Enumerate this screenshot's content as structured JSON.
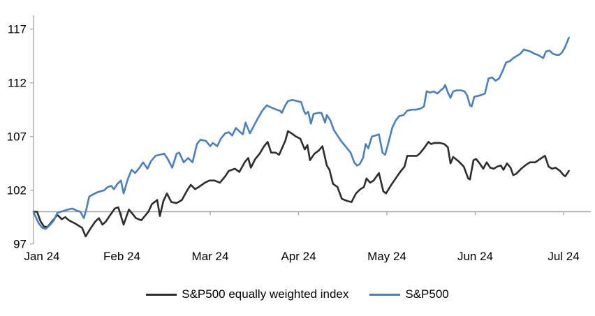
{
  "chart_data": {
    "type": "line",
    "title": "",
    "x_axis": {
      "labels": [
        "Jan 24",
        "Feb 24",
        "Mar 24",
        "Apr 24",
        "May 24",
        "Jun 24",
        "Jul 24"
      ],
      "unit": "month",
      "range": [
        0,
        6.06
      ]
    },
    "y_axis": {
      "ticks": [
        97,
        102,
        107,
        112,
        117
      ],
      "min": 97,
      "max": 117
    },
    "baseline_value": 100,
    "grid": "off",
    "legend_position": "bottom-center",
    "colors": {
      "equal_weight_line": "#2d2d2d",
      "sp500_line": "#4a80bd",
      "axis_gray": "#a6a6a6",
      "text": "#000000"
    },
    "series": [
      {
        "name": "S&P500 equally weighted index",
        "color": "#2d2d2d",
        "points": [
          [
            0.0,
            100.0
          ],
          [
            0.04,
            100.0
          ],
          [
            0.08,
            99.1
          ],
          [
            0.12,
            98.6
          ],
          [
            0.16,
            98.6
          ],
          [
            0.21,
            99.1
          ],
          [
            0.27,
            99.7
          ],
          [
            0.32,
            99.3
          ],
          [
            0.36,
            99.5
          ],
          [
            0.4,
            99.2
          ],
          [
            0.47,
            98.9
          ],
          [
            0.55,
            98.5
          ],
          [
            0.59,
            97.7
          ],
          [
            0.65,
            98.5
          ],
          [
            0.7,
            99.1
          ],
          [
            0.74,
            99.4
          ],
          [
            0.78,
            98.8
          ],
          [
            0.82,
            99.1
          ],
          [
            0.86,
            99.6
          ],
          [
            0.92,
            100.3
          ],
          [
            0.96,
            100.4
          ],
          [
            1.02,
            98.8
          ],
          [
            1.08,
            100.2
          ],
          [
            1.11,
            99.9
          ],
          [
            1.16,
            99.4
          ],
          [
            1.22,
            99.2
          ],
          [
            1.26,
            99.6
          ],
          [
            1.3,
            100.0
          ],
          [
            1.34,
            100.7
          ],
          [
            1.4,
            101.1
          ],
          [
            1.43,
            99.6
          ],
          [
            1.47,
            101.0
          ],
          [
            1.51,
            101.7
          ],
          [
            1.56,
            100.9
          ],
          [
            1.62,
            100.8
          ],
          [
            1.68,
            101.1
          ],
          [
            1.74,
            102.0
          ],
          [
            1.78,
            102.5
          ],
          [
            1.83,
            102.1
          ],
          [
            1.87,
            102.3
          ],
          [
            1.94,
            102.7
          ],
          [
            1.99,
            102.9
          ],
          [
            2.05,
            102.9
          ],
          [
            2.11,
            102.7
          ],
          [
            2.17,
            103.3
          ],
          [
            2.21,
            103.8
          ],
          [
            2.28,
            104.0
          ],
          [
            2.33,
            103.7
          ],
          [
            2.39,
            104.6
          ],
          [
            2.43,
            105.0
          ],
          [
            2.46,
            104.1
          ],
          [
            2.51,
            104.9
          ],
          [
            2.56,
            105.4
          ],
          [
            2.61,
            106.1
          ],
          [
            2.65,
            106.5
          ],
          [
            2.69,
            105.5
          ],
          [
            2.74,
            105.5
          ],
          [
            2.78,
            105.3
          ],
          [
            2.85,
            106.6
          ],
          [
            2.88,
            107.5
          ],
          [
            2.92,
            107.3
          ],
          [
            2.97,
            107.0
          ],
          [
            3.02,
            106.8
          ],
          [
            3.07,
            105.8
          ],
          [
            3.1,
            106.2
          ],
          [
            3.13,
            104.8
          ],
          [
            3.18,
            105.4
          ],
          [
            3.23,
            105.7
          ],
          [
            3.27,
            106.1
          ],
          [
            3.32,
            104.3
          ],
          [
            3.35,
            103.9
          ],
          [
            3.39,
            102.6
          ],
          [
            3.44,
            102.3
          ],
          [
            3.49,
            101.2
          ],
          [
            3.55,
            101.0
          ],
          [
            3.6,
            100.9
          ],
          [
            3.65,
            101.7
          ],
          [
            3.7,
            102.1
          ],
          [
            3.74,
            102.3
          ],
          [
            3.77,
            103.1
          ],
          [
            3.81,
            102.7
          ],
          [
            3.85,
            102.9
          ],
          [
            3.91,
            103.6
          ],
          [
            3.96,
            101.9
          ],
          [
            3.99,
            101.7
          ],
          [
            4.05,
            102.5
          ],
          [
            4.1,
            103.1
          ],
          [
            4.15,
            103.7
          ],
          [
            4.2,
            104.2
          ],
          [
            4.23,
            105.2
          ],
          [
            4.29,
            105.2
          ],
          [
            4.34,
            105.2
          ],
          [
            4.37,
            105.4
          ],
          [
            4.42,
            105.9
          ],
          [
            4.47,
            106.5
          ],
          [
            4.5,
            106.3
          ],
          [
            4.54,
            106.4
          ],
          [
            4.6,
            106.4
          ],
          [
            4.65,
            106.3
          ],
          [
            4.69,
            106.0
          ],
          [
            4.72,
            104.5
          ],
          [
            4.75,
            105.1
          ],
          [
            4.81,
            104.7
          ],
          [
            4.87,
            104.2
          ],
          [
            4.92,
            103.1
          ],
          [
            4.94,
            103.0
          ],
          [
            4.98,
            104.8
          ],
          [
            5.01,
            104.9
          ],
          [
            5.05,
            104.5
          ],
          [
            5.09,
            104.0
          ],
          [
            5.13,
            104.6
          ],
          [
            5.17,
            104.1
          ],
          [
            5.21,
            104.0
          ],
          [
            5.25,
            104.2
          ],
          [
            5.29,
            104.3
          ],
          [
            5.32,
            103.9
          ],
          [
            5.36,
            104.5
          ],
          [
            5.4,
            104.1
          ],
          [
            5.43,
            103.4
          ],
          [
            5.46,
            103.5
          ],
          [
            5.52,
            104.0
          ],
          [
            5.58,
            104.4
          ],
          [
            5.62,
            104.6
          ],
          [
            5.68,
            104.6
          ],
          [
            5.75,
            105.0
          ],
          [
            5.79,
            105.2
          ],
          [
            5.83,
            104.2
          ],
          [
            5.87,
            104.0
          ],
          [
            5.91,
            104.1
          ],
          [
            5.96,
            103.8
          ],
          [
            6.0,
            103.4
          ],
          [
            6.02,
            103.3
          ],
          [
            6.06,
            103.8
          ]
        ]
      },
      {
        "name": "S&P500",
        "color": "#4a80bd",
        "points": [
          [
            0.0,
            100.0
          ],
          [
            0.02,
            99.6
          ],
          [
            0.06,
            98.9
          ],
          [
            0.1,
            98.5
          ],
          [
            0.14,
            98.4
          ],
          [
            0.19,
            98.8
          ],
          [
            0.23,
            99.2
          ],
          [
            0.27,
            99.9
          ],
          [
            0.31,
            100.0
          ],
          [
            0.35,
            100.1
          ],
          [
            0.39,
            100.2
          ],
          [
            0.44,
            100.3
          ],
          [
            0.49,
            100.1
          ],
          [
            0.53,
            100.0
          ],
          [
            0.57,
            99.4
          ],
          [
            0.6,
            100.3
          ],
          [
            0.63,
            101.4
          ],
          [
            0.67,
            101.6
          ],
          [
            0.72,
            101.8
          ],
          [
            0.76,
            101.9
          ],
          [
            0.8,
            102.0
          ],
          [
            0.84,
            102.3
          ],
          [
            0.88,
            102.4
          ],
          [
            0.91,
            102.1
          ],
          [
            0.95,
            102.6
          ],
          [
            0.99,
            102.9
          ],
          [
            1.02,
            101.7
          ],
          [
            1.07,
            103.1
          ],
          [
            1.11,
            103.9
          ],
          [
            1.15,
            103.6
          ],
          [
            1.2,
            104.1
          ],
          [
            1.24,
            104.6
          ],
          [
            1.29,
            104.0
          ],
          [
            1.33,
            104.7
          ],
          [
            1.38,
            105.2
          ],
          [
            1.43,
            105.3
          ],
          [
            1.48,
            105.4
          ],
          [
            1.52,
            104.9
          ],
          [
            1.57,
            104.1
          ],
          [
            1.62,
            105.4
          ],
          [
            1.65,
            105.5
          ],
          [
            1.7,
            104.6
          ],
          [
            1.75,
            105.0
          ],
          [
            1.8,
            104.6
          ],
          [
            1.85,
            106.3
          ],
          [
            1.89,
            106.7
          ],
          [
            1.95,
            106.6
          ],
          [
            2.0,
            106.1
          ],
          [
            2.03,
            106.4
          ],
          [
            2.08,
            106.1
          ],
          [
            2.12,
            106.8
          ],
          [
            2.17,
            107.3
          ],
          [
            2.21,
            107.4
          ],
          [
            2.25,
            107.1
          ],
          [
            2.29,
            107.8
          ],
          [
            2.34,
            107.4
          ],
          [
            2.37,
            107.2
          ],
          [
            2.4,
            108.3
          ],
          [
            2.45,
            107.3
          ],
          [
            2.5,
            108.1
          ],
          [
            2.54,
            108.7
          ],
          [
            2.59,
            109.4
          ],
          [
            2.64,
            109.9
          ],
          [
            2.69,
            109.7
          ],
          [
            2.75,
            109.5
          ],
          [
            2.79,
            109.4
          ],
          [
            2.81,
            109.2
          ],
          [
            2.85,
            109.9
          ],
          [
            2.88,
            110.3
          ],
          [
            2.93,
            110.4
          ],
          [
            2.98,
            110.3
          ],
          [
            3.03,
            110.2
          ],
          [
            3.06,
            109.4
          ],
          [
            3.08,
            109.1
          ],
          [
            3.11,
            109.3
          ],
          [
            3.14,
            108.2
          ],
          [
            3.17,
            109.1
          ],
          [
            3.22,
            109.2
          ],
          [
            3.26,
            109.2
          ],
          [
            3.3,
            108.3
          ],
          [
            3.32,
            109.0
          ],
          [
            3.36,
            108.5
          ],
          [
            3.4,
            107.6
          ],
          [
            3.44,
            107.1
          ],
          [
            3.48,
            106.6
          ],
          [
            3.52,
            106.2
          ],
          [
            3.56,
            105.8
          ],
          [
            3.59,
            105.5
          ],
          [
            3.63,
            104.6
          ],
          [
            3.66,
            104.3
          ],
          [
            3.69,
            104.4
          ],
          [
            3.73,
            105.0
          ],
          [
            3.76,
            106.3
          ],
          [
            3.79,
            105.9
          ],
          [
            3.83,
            107.0
          ],
          [
            3.87,
            107.1
          ],
          [
            3.91,
            107.2
          ],
          [
            3.95,
            105.5
          ],
          [
            3.98,
            105.3
          ],
          [
            4.02,
            106.5
          ],
          [
            4.06,
            107.8
          ],
          [
            4.1,
            108.5
          ],
          [
            4.14,
            108.9
          ],
          [
            4.19,
            109.0
          ],
          [
            4.23,
            109.4
          ],
          [
            4.28,
            109.5
          ],
          [
            4.33,
            109.5
          ],
          [
            4.38,
            109.6
          ],
          [
            4.42,
            109.8
          ],
          [
            4.45,
            111.2
          ],
          [
            4.49,
            111.1
          ],
          [
            4.53,
            111.2
          ],
          [
            4.57,
            111.0
          ],
          [
            4.61,
            111.3
          ],
          [
            4.64,
            111.5
          ],
          [
            4.66,
            111.8
          ],
          [
            4.69,
            111.1
          ],
          [
            4.72,
            110.6
          ],
          [
            4.75,
            111.2
          ],
          [
            4.79,
            111.3
          ],
          [
            4.84,
            111.3
          ],
          [
            4.88,
            111.2
          ],
          [
            4.91,
            110.8
          ],
          [
            4.94,
            109.9
          ],
          [
            4.96,
            109.8
          ],
          [
            4.99,
            110.7
          ],
          [
            5.04,
            110.8
          ],
          [
            5.08,
            110.9
          ],
          [
            5.11,
            111.0
          ],
          [
            5.15,
            112.4
          ],
          [
            5.19,
            112.5
          ],
          [
            5.23,
            112.2
          ],
          [
            5.27,
            112.4
          ],
          [
            5.31,
            113.1
          ],
          [
            5.35,
            113.9
          ],
          [
            5.39,
            114.0
          ],
          [
            5.43,
            114.3
          ],
          [
            5.47,
            114.5
          ],
          [
            5.51,
            114.7
          ],
          [
            5.55,
            115.1
          ],
          [
            5.59,
            115.0
          ],
          [
            5.63,
            114.9
          ],
          [
            5.67,
            114.7
          ],
          [
            5.71,
            114.6
          ],
          [
            5.75,
            114.4
          ],
          [
            5.77,
            114.3
          ],
          [
            5.8,
            114.9
          ],
          [
            5.84,
            115.0
          ],
          [
            5.88,
            114.7
          ],
          [
            5.92,
            114.6
          ],
          [
            5.95,
            114.6
          ],
          [
            5.98,
            114.8
          ],
          [
            6.01,
            115.2
          ],
          [
            6.04,
            115.8
          ],
          [
            6.06,
            116.2
          ]
        ]
      }
    ]
  }
}
